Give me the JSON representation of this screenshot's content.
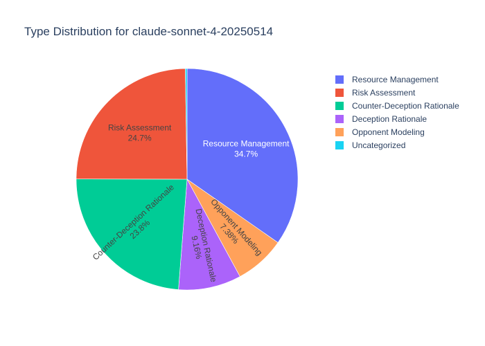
{
  "chart_data": {
    "type": "pie",
    "title": "Type Distribution for claude-sonnet-4-20250514",
    "legend_position": "top-right",
    "direction": "clockwise",
    "start_angle_deg": 0,
    "slices": [
      {
        "label": "Resource Management",
        "percent": 34.7,
        "display": "34.7%",
        "color": "#636efa",
        "label_color": "#ffffff",
        "label_mode": "horizontal"
      },
      {
        "label": "Opponent Modeling",
        "percent": 7.38,
        "display": "7.38%",
        "color": "#ffa15a",
        "label_color": "#444444",
        "label_mode": "radial"
      },
      {
        "label": "Deception Rationale",
        "percent": 9.16,
        "display": "9.16%",
        "color": "#ab63fa",
        "label_color": "#444444",
        "label_mode": "radial"
      },
      {
        "label": "Counter-Deception Rationale",
        "percent": 23.8,
        "display": "23.8%",
        "color": "#00cc96",
        "label_color": "#444444",
        "label_mode": "radial"
      },
      {
        "label": "Risk Assessment",
        "percent": 24.7,
        "display": "24.7%",
        "color": "#ef553b",
        "label_color": "#444444",
        "label_mode": "horizontal"
      },
      {
        "label": "Uncategorized",
        "percent": 0.26,
        "display": "",
        "color": "#19d3f3",
        "label_color": "#444444",
        "label_mode": "none"
      }
    ],
    "legend": [
      {
        "label": "Resource Management",
        "color": "#636efa"
      },
      {
        "label": "Risk Assessment",
        "color": "#ef553b"
      },
      {
        "label": "Counter-Deception Rationale",
        "color": "#00cc96"
      },
      {
        "label": "Deception Rationale",
        "color": "#ab63fa"
      },
      {
        "label": "Opponent Modeling",
        "color": "#ffa15a"
      },
      {
        "label": "Uncategorized",
        "color": "#19d3f3"
      }
    ]
  }
}
